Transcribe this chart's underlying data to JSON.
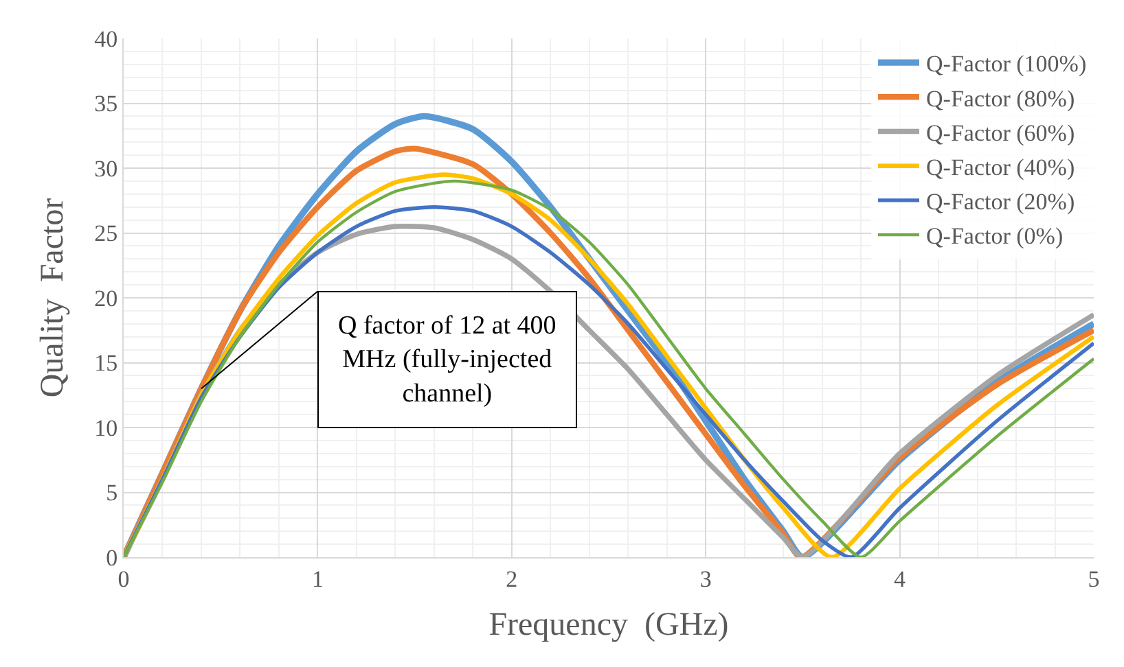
{
  "chart_data": {
    "type": "line",
    "xlabel": "Frequency  (GHz)",
    "ylabel": "Quality  Factor",
    "xlim": [
      0,
      5
    ],
    "xticks": [
      0,
      1,
      2,
      3,
      4,
      5
    ],
    "ylim": [
      0,
      40
    ],
    "yticks": [
      0,
      5,
      10,
      15,
      20,
      25,
      30,
      35,
      40
    ],
    "grid": true,
    "legend": "top right",
    "marker": "none",
    "line_style": "solid",
    "series": [
      {
        "name": "Q-Factor (100%)",
        "color": "#5b9bd5",
        "x": [
          0,
          0.2,
          0.4,
          0.6,
          0.8,
          1.0,
          1.2,
          1.4,
          1.55,
          1.8,
          2.0,
          2.2,
          2.4,
          2.6,
          2.8,
          3.0,
          3.2,
          3.4,
          3.5,
          4.0,
          4.5,
          5.0
        ],
        "values": [
          0,
          6.5,
          13,
          19,
          24,
          28,
          31.3,
          33.4,
          34,
          33,
          30.5,
          27,
          23,
          19,
          15,
          10.5,
          6,
          2,
          0,
          7.5,
          13.5,
          18
        ]
      },
      {
        "name": "Q-Factor (80%)",
        "color": "#ed7d31",
        "x": [
          0,
          0.2,
          0.4,
          0.6,
          0.8,
          1.0,
          1.2,
          1.4,
          1.5,
          1.8,
          2.0,
          2.2,
          2.4,
          2.6,
          2.8,
          3.0,
          3.2,
          3.4,
          3.49,
          4.0,
          4.5,
          5.0
        ],
        "values": [
          0,
          6.5,
          13,
          19,
          23.5,
          27,
          29.8,
          31.3,
          31.5,
          30.3,
          28,
          25,
          21.5,
          17.5,
          13.5,
          9.5,
          5.5,
          1.8,
          0,
          7.7,
          13.3,
          17.5
        ]
      },
      {
        "name": "Q-Factor (60%)",
        "color": "#a5a5a5",
        "x": [
          0,
          0.2,
          0.4,
          0.6,
          0.8,
          1.0,
          1.2,
          1.4,
          1.6,
          1.8,
          2.0,
          2.2,
          2.4,
          2.6,
          2.8,
          3.0,
          3.2,
          3.4,
          3.5,
          4.0,
          4.5,
          5.0
        ],
        "values": [
          0,
          6,
          12.5,
          17.5,
          21,
          23.5,
          24.9,
          25.5,
          25.4,
          24.5,
          23,
          20.5,
          17.5,
          14.5,
          11,
          7.5,
          4.5,
          1.5,
          0,
          8,
          14,
          18.7
        ]
      },
      {
        "name": "Q-Factor (40%)",
        "color": "#ffc000",
        "x": [
          0,
          0.2,
          0.4,
          0.6,
          0.8,
          1.0,
          1.2,
          1.4,
          1.65,
          1.8,
          2.0,
          2.2,
          2.4,
          2.6,
          2.8,
          3.0,
          3.2,
          3.4,
          3.65,
          4.0,
          4.5,
          5.0
        ],
        "values": [
          0,
          6,
          12.5,
          17.5,
          21.5,
          24.8,
          27.3,
          28.9,
          29.5,
          29.2,
          28,
          26,
          23,
          19.5,
          15.5,
          11.5,
          7.5,
          3.8,
          0,
          5.3,
          11.7,
          17
        ]
      },
      {
        "name": "Q-Factor (20%)",
        "color": "#4472c4",
        "x": [
          0,
          0.2,
          0.4,
          0.6,
          0.8,
          1.0,
          1.2,
          1.4,
          1.6,
          1.8,
          2.0,
          2.2,
          2.4,
          2.6,
          2.8,
          3.0,
          3.2,
          3.4,
          3.6,
          3.75,
          4.0,
          4.5,
          5.0
        ],
        "values": [
          0,
          6,
          12.3,
          17,
          20.8,
          23.5,
          25.5,
          26.7,
          27,
          26.7,
          25.5,
          23.5,
          21,
          18,
          14.5,
          11,
          7.5,
          4.3,
          1.3,
          0,
          3.8,
          10.5,
          16.5
        ]
      },
      {
        "name": "Q-Factor (0%)",
        "color": "#70ad47",
        "x": [
          0,
          0.2,
          0.4,
          0.6,
          0.8,
          1.0,
          1.2,
          1.4,
          1.7,
          2.0,
          2.2,
          2.4,
          2.6,
          2.8,
          3.0,
          3.2,
          3.4,
          3.6,
          3.8,
          4.0,
          4.5,
          5.0
        ],
        "values": [
          0,
          5.8,
          12,
          17,
          21,
          24.3,
          26.6,
          28.2,
          29,
          28.3,
          26.8,
          24.3,
          21,
          17,
          13,
          9.5,
          6,
          2.8,
          0,
          2.8,
          9.3,
          15.3
        ]
      }
    ],
    "annotations": [
      {
        "text": "Q factor of 12 at 400 MHz (fully-injected channel)",
        "x": 0.4,
        "y": 13
      }
    ]
  }
}
